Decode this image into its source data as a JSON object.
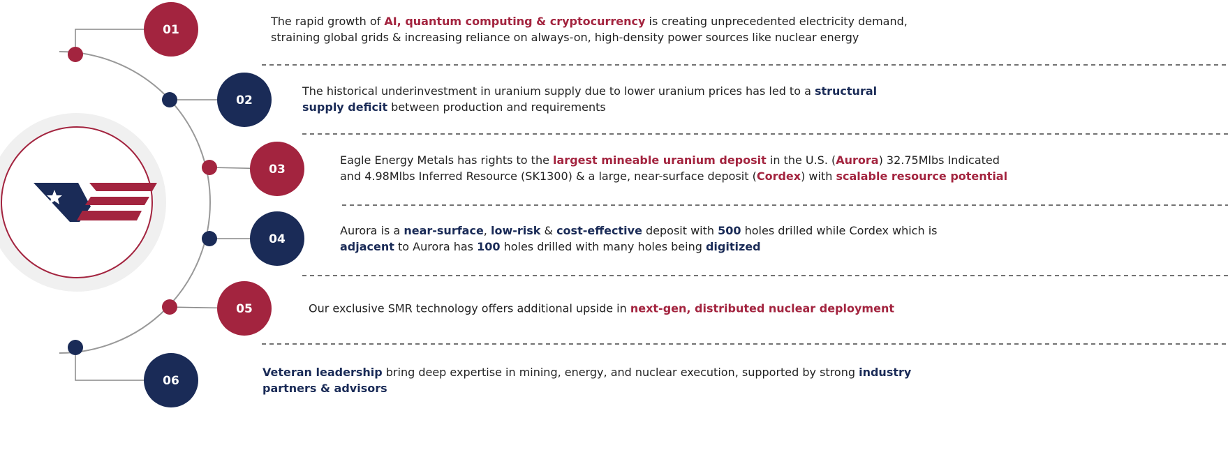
{
  "items": [
    {
      "number": "01",
      "color": "#a3243f",
      "lines": [
        [
          {
            "text": "The rapid growth of "
          },
          {
            "text": "AI, quantum computing & cryptocurrency",
            "strong": true
          },
          {
            "text": " is creating unprecedented electricity demand,"
          }
        ],
        [
          {
            "text": "straining global grids & increasing reliance on always-on, high-density power sources like nuclear energy"
          }
        ]
      ]
    },
    {
      "number": "02",
      "color": "#1a2b57",
      "lines": [
        [
          {
            "text": "The historical underinvestment in uranium supply due to lower uranium prices has led to a "
          },
          {
            "text": "structural",
            "strong": true
          }
        ],
        [
          {
            "text": "supply deficit",
            "strong": true
          },
          {
            "text": " between production and requirements"
          }
        ]
      ]
    },
    {
      "number": "03",
      "color": "#a3243f",
      "lines": [
        [
          {
            "text": "Eagle Energy Metals has rights to the "
          },
          {
            "text": "largest mineable uranium deposit",
            "strong": true
          },
          {
            "text": " in the U.S. ("
          },
          {
            "text": "Aurora",
            "strong": true
          },
          {
            "text": ") 32.75Mlbs Indicated"
          }
        ],
        [
          {
            "text": "and 4.98Mlbs Inferred Resource (SK1300) & a large, near-surface deposit ("
          },
          {
            "text": "Cordex",
            "strong": true
          },
          {
            "text": ") with "
          },
          {
            "text": "scalable resource potential",
            "strong": true
          }
        ]
      ]
    },
    {
      "number": "04",
      "color": "#1a2b57",
      "lines": [
        [
          {
            "text": "Aurora is a "
          },
          {
            "text": "near-surface",
            "strong": true
          },
          {
            "text": ", "
          },
          {
            "text": "low-risk",
            "strong": true
          },
          {
            "text": " & "
          },
          {
            "text": "cost-effective",
            "strong": true
          },
          {
            "text": " deposit with "
          },
          {
            "text": "500",
            "strong": true
          },
          {
            "text": " holes drilled while Cordex which is"
          }
        ],
        [
          {
            "text": "adjacent",
            "strong": true
          },
          {
            "text": " to Aurora has "
          },
          {
            "text": "100",
            "strong": true
          },
          {
            "text": " holes drilled with many holes being "
          },
          {
            "text": "digitized",
            "strong": true
          }
        ]
      ]
    },
    {
      "number": "05",
      "color": "#a3243f",
      "lines": [
        [
          {
            "text": "Our exclusive SMR technology offers additional upside in "
          },
          {
            "text": "next-gen, distributed nuclear deployment",
            "strong": true
          }
        ]
      ]
    },
    {
      "number": "06",
      "color": "#1a2b57",
      "lines": [
        [
          {
            "text": "Veteran leadership",
            "strong": true
          },
          {
            "text": " bring deep expertise in mining, energy, and nuclear execution, supported by strong "
          },
          {
            "text": "industry",
            "strong": true
          }
        ],
        [
          {
            "text": "partners & advisors",
            "strong": true
          }
        ]
      ]
    }
  ]
}
